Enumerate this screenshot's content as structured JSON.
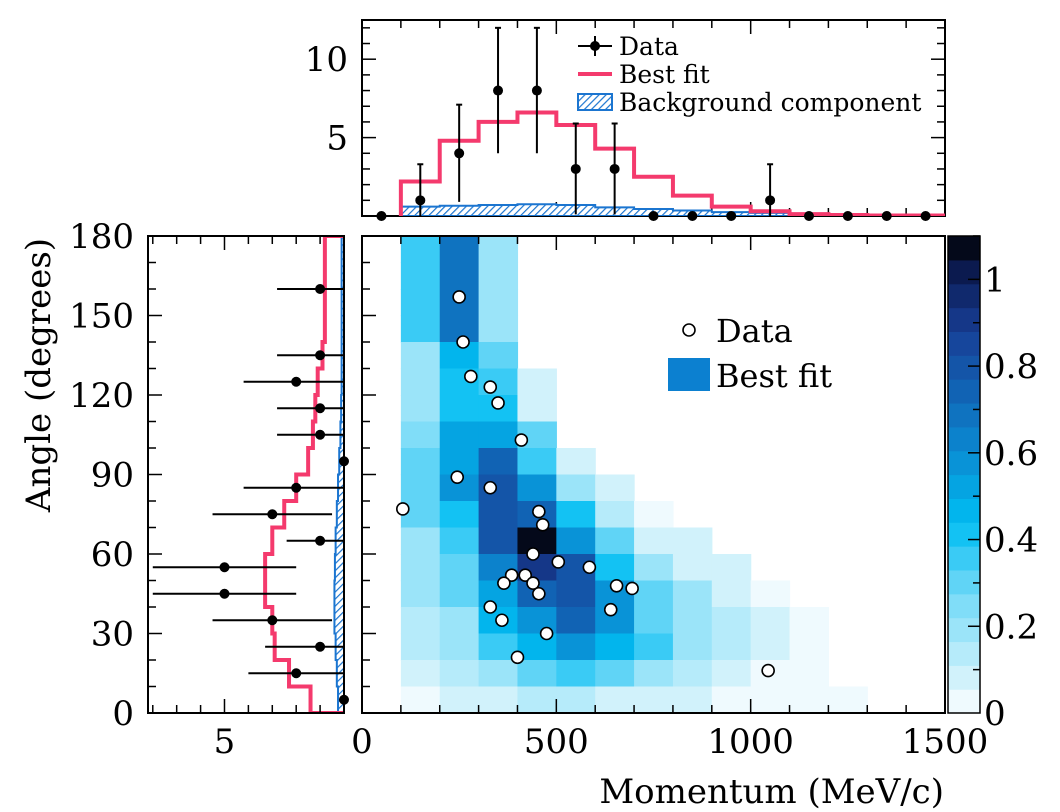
{
  "chart_data": [
    {
      "panel": "top",
      "type": "histogram",
      "xlim": [
        0,
        1500
      ],
      "ylim": [
        0,
        12.5
      ],
      "yticks": [
        5,
        10
      ],
      "legend": {
        "placement": "top-right",
        "entries": [
          "Data",
          "Best fit",
          "Background component"
        ]
      },
      "data": {
        "name": "Data",
        "x": [
          50,
          150,
          250,
          350,
          450,
          550,
          650,
          750,
          850,
          950,
          1050,
          1150,
          1250,
          1350,
          1450
        ],
        "y": [
          0,
          1,
          4,
          8,
          8,
          3,
          3,
          0,
          0,
          0,
          1,
          0,
          0,
          0,
          0
        ],
        "yerr": [
          0,
          2.3,
          3.1,
          4.0,
          4.0,
          2.9,
          2.9,
          0,
          0,
          0,
          2.3,
          0,
          0,
          0,
          0
        ]
      },
      "best_fit": {
        "name": "Best fit",
        "bin_edges": [
          100,
          200,
          300,
          400,
          500,
          600,
          700,
          800,
          900,
          1000,
          1100,
          1200,
          1300,
          1400,
          1500
        ],
        "values": [
          2.2,
          4.8,
          6.0,
          6.6,
          5.8,
          4.3,
          2.5,
          1.3,
          0.6,
          0.3,
          0.12,
          0.06,
          0.03,
          0.03
        ]
      },
      "background": {
        "name": "Background component",
        "bin_edges": [
          100,
          200,
          300,
          400,
          500,
          600,
          700,
          800,
          900,
          1000,
          1100,
          1200,
          1300,
          1400,
          1500
        ],
        "values": [
          0.6,
          0.65,
          0.7,
          0.75,
          0.7,
          0.55,
          0.45,
          0.35,
          0.25,
          0.2,
          0.12,
          0.08,
          0.05,
          0.03
        ]
      }
    },
    {
      "panel": "left",
      "type": "histogram-horizontal",
      "ylabel": "Angle (degrees)",
      "ylim": [
        0,
        180
      ],
      "yticks": [
        0,
        30,
        60,
        90,
        120,
        150,
        180
      ],
      "xlim_reversed": [
        8.2,
        0
      ],
      "xticks": [
        5
      ],
      "data": {
        "name": "Data",
        "angle": [
          5,
          15,
          25,
          35,
          45,
          55,
          65,
          75,
          85,
          95,
          105,
          115,
          125,
          135,
          160
        ],
        "count": [
          0,
          2,
          1,
          3,
          5,
          5,
          1,
          3,
          2,
          0,
          1,
          1,
          2,
          1,
          1
        ],
        "xerr": [
          0,
          2.0,
          2.3,
          2.5,
          3.0,
          3.0,
          1.4,
          2.5,
          2.2,
          0,
          1.8,
          1.8,
          2.2,
          1.8,
          1.8
        ]
      },
      "best_fit": {
        "name": "Best fit",
        "bin_edges": [
          0,
          10,
          20,
          30,
          40,
          50,
          60,
          70,
          80,
          90,
          100,
          110,
          120,
          130,
          140,
          150,
          160,
          170,
          180
        ],
        "values": [
          1.4,
          2.3,
          2.9,
          3.0,
          3.3,
          3.3,
          3.0,
          2.5,
          2.0,
          1.5,
          1.3,
          1.2,
          1.1,
          0.9,
          0.8,
          0.8,
          0.8,
          0.8
        ]
      },
      "background": {
        "name": "Background component",
        "bin_edges": [
          0,
          10,
          20,
          30,
          40,
          50,
          60,
          70,
          80,
          90,
          100,
          110,
          120,
          130,
          140,
          150,
          160,
          170,
          180
        ],
        "values": [
          0.25,
          0.3,
          0.35,
          0.4,
          0.4,
          0.38,
          0.35,
          0.3,
          0.25,
          0.2,
          0.15,
          0.12,
          0.1,
          0.1,
          0.1,
          0.1,
          0.1,
          0.1
        ]
      }
    },
    {
      "panel": "main",
      "type": "heatmap",
      "xlabel": "Momentum (MeV/c)",
      "xlim": [
        0,
        1500
      ],
      "xticks": [
        0,
        500,
        1000,
        1500
      ],
      "ylim": [
        0,
        180
      ],
      "yticks": [
        0,
        30,
        60,
        90,
        120,
        150,
        180
      ],
      "legend": {
        "placement": "top-right",
        "entries": [
          "Data",
          "Best fit"
        ]
      },
      "colorbar": {
        "range": [
          0,
          1.1
        ],
        "ticks": [
          "0",
          "0.2",
          "0.4",
          "0.6",
          "0.8",
          "1"
        ],
        "levels": 20
      },
      "x_bin_edges": [
        100,
        200,
        300,
        400,
        500,
        600,
        700,
        800,
        900,
        1000,
        1100,
        1200,
        1300
      ],
      "y_bin_edges": [
        0,
        10,
        20,
        30,
        40,
        50,
        60,
        70,
        80,
        90,
        100,
        110,
        120,
        130,
        140,
        150,
        160,
        170,
        180
      ],
      "z_rows_from_top": [
        [
          0.33,
          0.7,
          0.18,
          0,
          0,
          0,
          0,
          0,
          0,
          0,
          0,
          0
        ],
        [
          0.33,
          0.7,
          0.18,
          0,
          0,
          0,
          0,
          0,
          0,
          0,
          0,
          0
        ],
        [
          0.33,
          0.7,
          0.18,
          0,
          0,
          0,
          0,
          0,
          0,
          0,
          0,
          0
        ],
        [
          0.33,
          0.7,
          0.18,
          0,
          0,
          0,
          0,
          0,
          0,
          0,
          0,
          0
        ],
        [
          0.22,
          0.48,
          0.28,
          0,
          0,
          0,
          0,
          0,
          0,
          0,
          0,
          0
        ],
        [
          0.22,
          0.42,
          0.38,
          0.1,
          0,
          0,
          0,
          0,
          0,
          0,
          0,
          0
        ],
        [
          0.22,
          0.42,
          0.42,
          0.1,
          0,
          0,
          0,
          0,
          0,
          0,
          0,
          0
        ],
        [
          0.25,
          0.52,
          0.52,
          0.28,
          0,
          0,
          0,
          0,
          0,
          0,
          0,
          0
        ],
        [
          0.28,
          0.52,
          0.72,
          0.35,
          0.1,
          0,
          0,
          0,
          0,
          0,
          0,
          0
        ],
        [
          0.28,
          0.55,
          0.82,
          0.6,
          0.2,
          0.1,
          0,
          0,
          0,
          0,
          0,
          0
        ],
        [
          0.3,
          0.42,
          0.82,
          0.72,
          0.4,
          0.12,
          0.05,
          0,
          0,
          0,
          0,
          0
        ],
        [
          0.22,
          0.35,
          0.8,
          1.1,
          0.6,
          0.3,
          0.1,
          0.1,
          0,
          0,
          0,
          0
        ],
        [
          0.22,
          0.32,
          0.65,
          0.92,
          0.82,
          0.42,
          0.2,
          0.1,
          0.1,
          0,
          0,
          0
        ],
        [
          0.18,
          0.28,
          0.5,
          0.72,
          0.82,
          0.58,
          0.3,
          0.22,
          0.1,
          0.05,
          0,
          0
        ],
        [
          0.15,
          0.22,
          0.48,
          0.55,
          0.72,
          0.55,
          0.32,
          0.2,
          0.15,
          0.1,
          0.05,
          0
        ],
        [
          0.12,
          0.2,
          0.35,
          0.48,
          0.55,
          0.48,
          0.33,
          0.22,
          0.15,
          0.1,
          0.05,
          0
        ],
        [
          0.1,
          0.15,
          0.22,
          0.3,
          0.33,
          0.3,
          0.22,
          0.15,
          0.1,
          0.05,
          0.04,
          0
        ],
        [
          0.05,
          0.08,
          0.1,
          0.12,
          0.12,
          0.1,
          0.08,
          0.06,
          0.05,
          0.04,
          0.03,
          0.02
        ]
      ],
      "data_points": [
        {
          "x": 105,
          "y": 77
        },
        {
          "x": 250,
          "y": 157
        },
        {
          "x": 260,
          "y": 140
        },
        {
          "x": 280,
          "y": 127
        },
        {
          "x": 330,
          "y": 123
        },
        {
          "x": 350,
          "y": 117
        },
        {
          "x": 410,
          "y": 103
        },
        {
          "x": 245,
          "y": 89
        },
        {
          "x": 330,
          "y": 85
        },
        {
          "x": 455,
          "y": 76
        },
        {
          "x": 465,
          "y": 71
        },
        {
          "x": 440,
          "y": 60
        },
        {
          "x": 505,
          "y": 57
        },
        {
          "x": 585,
          "y": 55
        },
        {
          "x": 385,
          "y": 52
        },
        {
          "x": 420,
          "y": 52
        },
        {
          "x": 365,
          "y": 49
        },
        {
          "x": 440,
          "y": 49
        },
        {
          "x": 655,
          "y": 48
        },
        {
          "x": 695,
          "y": 47
        },
        {
          "x": 455,
          "y": 45
        },
        {
          "x": 330,
          "y": 40
        },
        {
          "x": 640,
          "y": 39
        },
        {
          "x": 360,
          "y": 35
        },
        {
          "x": 475,
          "y": 30
        },
        {
          "x": 400,
          "y": 21
        },
        {
          "x": 1045,
          "y": 16
        }
      ]
    }
  ],
  "colors": {
    "best_fit_line": "#f43a6d",
    "background_fill": "#1b75d0",
    "legend_best_fit_box": "#0c80d0",
    "data": "#000000",
    "colormap": [
      "#ffffff",
      "#00bdf2",
      "#0a2a6e",
      "#000000"
    ]
  }
}
